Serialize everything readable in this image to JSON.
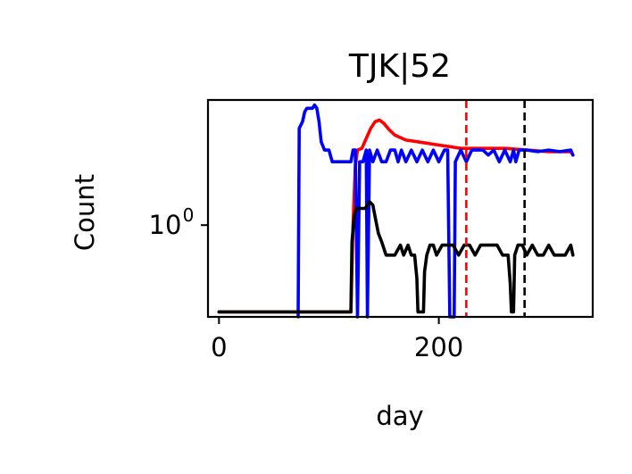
{
  "chart_data": {
    "type": "line",
    "title": "TJK|52",
    "xlabel": "day",
    "ylabel": "Count",
    "xlim": [
      -10,
      340
    ],
    "y_scale": "log",
    "x_ticks": [
      {
        "value": 0,
        "label": "0"
      },
      {
        "value": 200,
        "label": "200"
      }
    ],
    "y_ticks": [
      {
        "value": 1,
        "label": "10",
        "exponent": "0"
      }
    ],
    "ylim_log10": [
      -0.55,
      0.75
    ],
    "grid": false,
    "legend": "none",
    "series": [
      {
        "color": "#ff0000",
        "points": [
          [
            0,
            -0.52
          ],
          [
            120,
            -0.52
          ],
          [
            122,
            0
          ],
          [
            124,
            0.35
          ],
          [
            126,
            0.45
          ],
          [
            130,
            0.46
          ],
          [
            134,
            0.52
          ],
          [
            138,
            0.58
          ],
          [
            142,
            0.62
          ],
          [
            146,
            0.63
          ],
          [
            150,
            0.61
          ],
          [
            155,
            0.57
          ],
          [
            160,
            0.54
          ],
          [
            170,
            0.51
          ],
          [
            180,
            0.5
          ],
          [
            200,
            0.48
          ],
          [
            220,
            0.46
          ],
          [
            240,
            0.46
          ],
          [
            260,
            0.46
          ],
          [
            280,
            0.45
          ],
          [
            300,
            0.44
          ],
          [
            320,
            0.44
          ],
          [
            322,
            0.42
          ]
        ]
      },
      {
        "color": "#0000ff",
        "points": [
          [
            72,
            -0.55
          ],
          [
            73,
            0.58
          ],
          [
            76,
            0.62
          ],
          [
            78,
            0.68
          ],
          [
            80,
            0.7
          ],
          [
            85,
            0.7
          ],
          [
            87,
            0.72
          ],
          [
            89,
            0.7
          ],
          [
            91,
            0.62
          ],
          [
            93,
            0.5
          ],
          [
            96,
            0.45
          ],
          [
            100,
            0.45
          ],
          [
            103,
            0.38
          ],
          [
            110,
            0.38
          ],
          [
            120,
            0.38
          ],
          [
            122,
            0.45
          ],
          [
            124,
            0.45
          ],
          [
            126,
            -0.55
          ],
          [
            128,
            0.38
          ],
          [
            131,
            0.38
          ],
          [
            134,
            0.45
          ],
          [
            135,
            -0.55
          ],
          [
            137,
            0.45
          ],
          [
            140,
            0.38
          ],
          [
            144,
            0.45
          ],
          [
            148,
            0.38
          ],
          [
            152,
            0.38
          ],
          [
            156,
            0.45
          ],
          [
            160,
            0.45
          ],
          [
            163,
            0.38
          ],
          [
            166,
            0.45
          ],
          [
            170,
            0.38
          ],
          [
            175,
            0.45
          ],
          [
            180,
            0.38
          ],
          [
            185,
            0.45
          ],
          [
            190,
            0.38
          ],
          [
            195,
            0.45
          ],
          [
            200,
            0.38
          ],
          [
            205,
            0.45
          ],
          [
            208,
            0.45
          ],
          [
            210,
            -0.55
          ],
          [
            214,
            -0.55
          ],
          [
            215,
            0.38
          ],
          [
            220,
            0.45
          ],
          [
            225,
            0.38
          ],
          [
            230,
            0.45
          ],
          [
            235,
            0.45
          ],
          [
            240,
            0.45
          ],
          [
            245,
            0.42
          ],
          [
            250,
            0.45
          ],
          [
            255,
            0.38
          ],
          [
            260,
            0.45
          ],
          [
            265,
            0.38
          ],
          [
            268,
            0.45
          ],
          [
            270,
            0.38
          ],
          [
            273,
            0.45
          ],
          [
            276,
            0.45
          ],
          [
            280,
            0.45
          ],
          [
            290,
            0.44
          ],
          [
            300,
            0.45
          ],
          [
            310,
            0.44
          ],
          [
            320,
            0.45
          ],
          [
            322,
            0.42
          ]
        ]
      },
      {
        "color": "#000000",
        "points": [
          [
            0,
            -0.52
          ],
          [
            120,
            -0.52
          ],
          [
            121,
            -0.1
          ],
          [
            123,
            0.05
          ],
          [
            125,
            0.1
          ],
          [
            128,
            0.1
          ],
          [
            133,
            0.1
          ],
          [
            137,
            0.14
          ],
          [
            140,
            0.12
          ],
          [
            142,
            0.05
          ],
          [
            145,
            -0.05
          ],
          [
            148,
            -0.1
          ],
          [
            152,
            -0.18
          ],
          [
            155,
            -0.18
          ],
          [
            160,
            -0.18
          ],
          [
            165,
            -0.12
          ],
          [
            168,
            -0.18
          ],
          [
            172,
            -0.12
          ],
          [
            175,
            -0.18
          ],
          [
            178,
            -0.18
          ],
          [
            180,
            -0.32
          ],
          [
            181,
            -0.52
          ],
          [
            186,
            -0.52
          ],
          [
            187,
            -0.28
          ],
          [
            189,
            -0.18
          ],
          [
            192,
            -0.12
          ],
          [
            195,
            -0.12
          ],
          [
            198,
            -0.18
          ],
          [
            203,
            -0.12
          ],
          [
            208,
            -0.12
          ],
          [
            213,
            -0.12
          ],
          [
            218,
            -0.18
          ],
          [
            223,
            -0.12
          ],
          [
            228,
            -0.12
          ],
          [
            233,
            -0.18
          ],
          [
            238,
            -0.12
          ],
          [
            243,
            -0.12
          ],
          [
            248,
            -0.12
          ],
          [
            253,
            -0.12
          ],
          [
            258,
            -0.18
          ],
          [
            263,
            -0.18
          ],
          [
            265,
            -0.35
          ],
          [
            266,
            -0.52
          ],
          [
            268,
            -0.52
          ],
          [
            269,
            -0.18
          ],
          [
            272,
            -0.12
          ],
          [
            276,
            -0.12
          ],
          [
            280,
            -0.18
          ],
          [
            285,
            -0.12
          ],
          [
            290,
            -0.18
          ],
          [
            295,
            -0.18
          ],
          [
            300,
            -0.12
          ],
          [
            305,
            -0.18
          ],
          [
            310,
            -0.18
          ],
          [
            315,
            -0.18
          ],
          [
            320,
            -0.12
          ],
          [
            322,
            -0.18
          ]
        ]
      }
    ],
    "vlines": [
      {
        "x": 225,
        "color": "#ff0000",
        "style": "dashed"
      },
      {
        "x": 278,
        "color": "#000000",
        "style": "dashed"
      }
    ]
  }
}
